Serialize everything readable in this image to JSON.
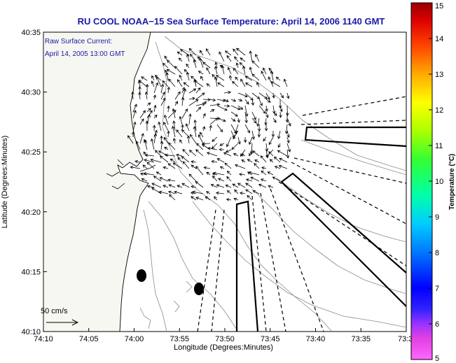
{
  "chart_data": {
    "type": "map",
    "title": "RU COOL  NOAA−15  Sea Surface Temperature:  April 14, 2006 1140 GMT",
    "xlabel": "Longitude (Degrees:Minutes)",
    "ylabel": "Latitude (Degrees:Minutes)",
    "x_ticks": [
      "74:10",
      "74:05",
      "74:00",
      "73:55",
      "73:50",
      "73:45",
      "73:40",
      "73:35",
      "73:3"
    ],
    "y_ticks": [
      "40:10",
      "40:15",
      "40:20",
      "40:25",
      "40:30",
      "40:35"
    ],
    "xlim": [
      -74.1667,
      -73.5
    ],
    "ylim": [
      40.1667,
      40.5833
    ],
    "annotation_lines": [
      "Raw Surface Current:",
      "April 14, 2005 13:00 GMT"
    ],
    "scale_label": "50 cm/s",
    "colorbar": {
      "label": "Temperature (°C)",
      "min": 5,
      "max": 15,
      "ticks": [
        "5",
        "6",
        "7",
        "8",
        "9",
        "10",
        "11",
        "12",
        "13",
        "14",
        "15"
      ]
    },
    "grid": false
  }
}
